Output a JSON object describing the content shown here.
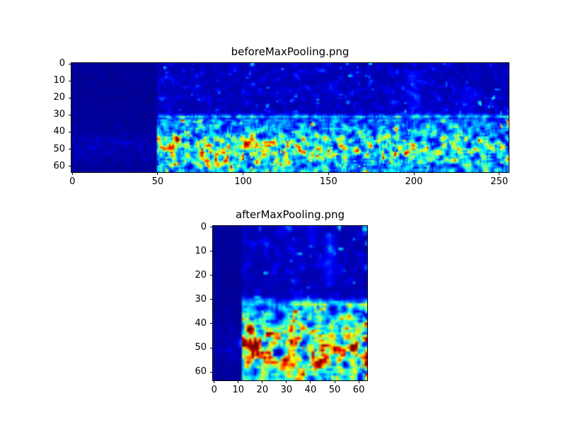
{
  "figure": {
    "background": "#ffffff",
    "kind": "matplotlib-style figure with two image subplots"
  },
  "chart_data": [
    {
      "type": "heatmap",
      "title": "beforeMaxPooling.png",
      "colormap": "jet",
      "grid": false,
      "legend": false,
      "x_range": [
        -0.5,
        255.5
      ],
      "y_range": [
        -0.5,
        63.5
      ],
      "y_inverted": true,
      "x_tick_values": [
        0,
        50,
        100,
        150,
        200,
        250
      ],
      "x_tick_labels": [
        "0",
        "50",
        "100",
        "150",
        "200",
        "250"
      ],
      "y_tick_values": [
        0,
        10,
        20,
        30,
        40,
        50,
        60
      ],
      "y_tick_labels": [
        "0",
        "10",
        "20",
        "30",
        "40",
        "50",
        "60"
      ],
      "description": "64x256 spectrogram-like feature map, jet colormap. Very dark blue silent region for columns 0-49; sparse faint blue speckles rows 0-29; bright speckled cyan/green horizontal band near row 31; dense cyan/green/yellow activity rows 34-63 peaking near row 50 with a red hotspot near column 57, row 49; bright speckles along bottom rows.",
      "structure": {
        "cols": 256,
        "rows": 64,
        "seed": 11,
        "silent_cols": 50,
        "band_row": 31,
        "active_start": 34,
        "active_peak_row": 50,
        "active_hot_col": 90,
        "active_gain": 1.0,
        "speckle_threshold": 0.74,
        "hotspots": [
          {
            "x": 57,
            "y": 49,
            "sigma": 2.2,
            "amp": 0.6
          },
          {
            "x": 61,
            "y": 44,
            "sigma": 1.6,
            "amp": 0.35
          },
          {
            "x": 75,
            "y": 53,
            "sigma": 2.4,
            "amp": 0.3
          },
          {
            "x": 101,
            "y": 47,
            "sigma": 2.8,
            "amp": 0.25
          },
          {
            "x": 123,
            "y": 58,
            "sigma": 2.6,
            "amp": 0.25
          },
          {
            "x": 148,
            "y": 44,
            "sigma": 2.2,
            "amp": 0.2
          },
          {
            "x": 196,
            "y": 52,
            "sigma": 2.4,
            "amp": 0.3
          }
        ],
        "vstreaks": [
          {
            "x": 200,
            "y0": 4,
            "y1": 30,
            "sigma": 3,
            "amp": 0.1
          },
          {
            "x": 232,
            "y0": 14,
            "y1": 30,
            "sigma": 4,
            "amp": 0.07
          }
        ]
      }
    },
    {
      "type": "heatmap",
      "title": "afterMaxPooling.png",
      "colormap": "jet",
      "grid": false,
      "legend": false,
      "x_range": [
        -0.5,
        63.5
      ],
      "y_range": [
        -0.5,
        63.5
      ],
      "y_inverted": true,
      "x_tick_values": [
        0,
        10,
        20,
        30,
        40,
        50,
        60
      ],
      "x_tick_labels": [
        "0",
        "10",
        "20",
        "30",
        "40",
        "50",
        "60"
      ],
      "y_tick_values": [
        0,
        10,
        20,
        30,
        40,
        50,
        60
      ],
      "y_tick_labels": [
        "0",
        "10",
        "20",
        "30",
        "40",
        "50",
        "60"
      ],
      "description": "64x64 max-pooled version of the same feature map, jet colormap. Dark silent region columns 0-11; bright speckled band near row 31; denser, brighter cyan/green/yellow activity rows 33-63 with red hotspot near column 14, row 48; faint vertical streak near column 48 in upper rows.",
      "structure": {
        "cols": 64,
        "rows": 64,
        "seed": 23,
        "silent_cols": 12,
        "band_row": 31,
        "active_start": 33,
        "active_peak_row": 50,
        "active_hot_col": 22,
        "active_gain": 1.25,
        "speckle_threshold": 0.68,
        "hotspots": [
          {
            "x": 14,
            "y": 48,
            "sigma": 1.9,
            "amp": 0.6
          },
          {
            "x": 15,
            "y": 43,
            "sigma": 1.4,
            "amp": 0.35
          },
          {
            "x": 25,
            "y": 47,
            "sigma": 1.8,
            "amp": 0.25
          },
          {
            "x": 31,
            "y": 58,
            "sigma": 2.2,
            "amp": 0.3
          },
          {
            "x": 43,
            "y": 57,
            "sigma": 2.0,
            "amp": 0.28
          },
          {
            "x": 49,
            "y": 51,
            "sigma": 1.8,
            "amp": 0.22
          }
        ],
        "vstreaks": [
          {
            "x": 48,
            "y0": 3,
            "y1": 24,
            "sigma": 1.6,
            "amp": 0.14
          }
        ]
      }
    }
  ],
  "colors": {
    "axes_spine": "#000000",
    "tick_label": "#000000",
    "jet_low": "#00007f",
    "jet_high": "#7f0000"
  }
}
